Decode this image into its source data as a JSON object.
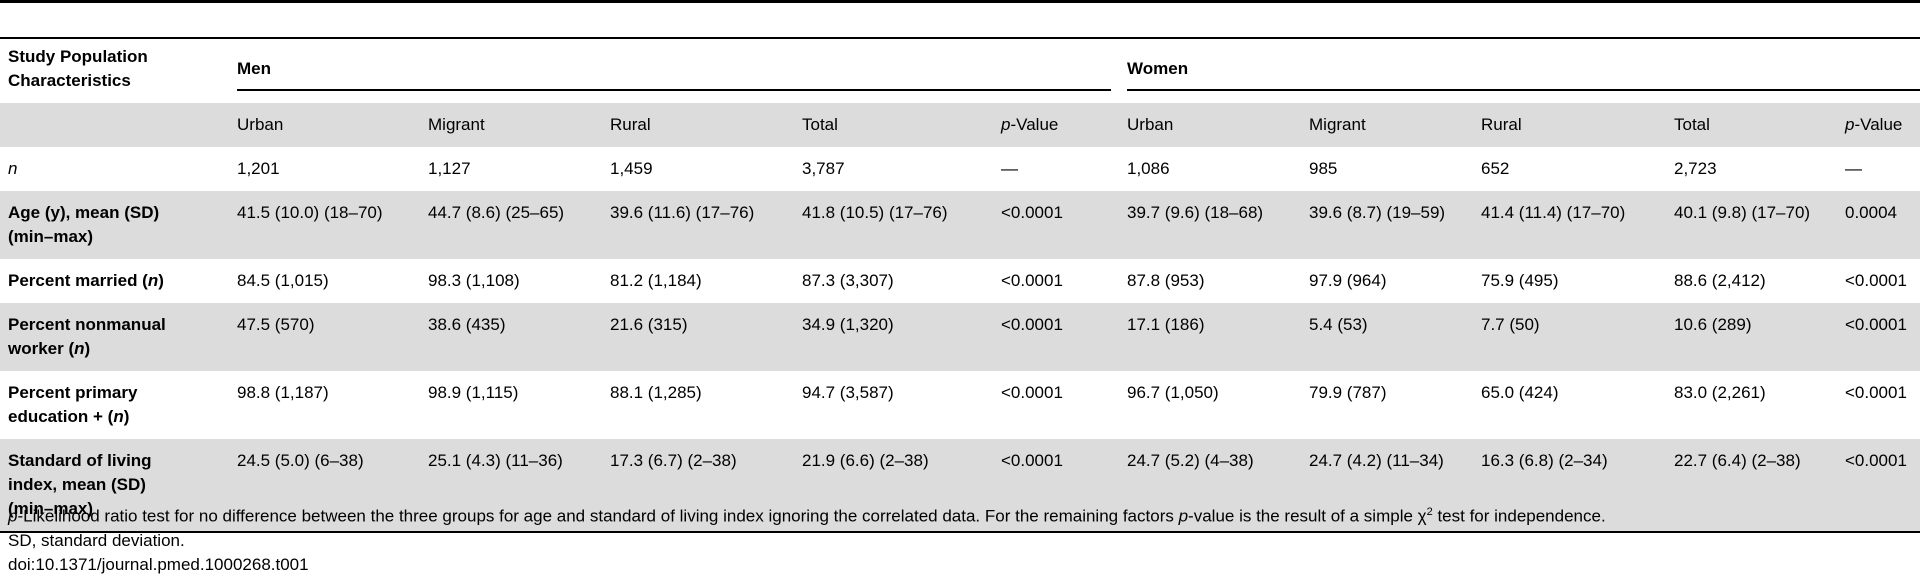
{
  "header": {
    "stub_title": [
      "Study Population",
      "Characteristics"
    ],
    "men_label": "Men",
    "women_label": "Women",
    "subcolumns": [
      "Urban",
      "Migrant",
      "Rural",
      "Total"
    ],
    "pvalue_prefix": "p",
    "pvalue_suffix": "-Value"
  },
  "rows": [
    {
      "label_parts": [
        {
          "t": "n",
          "italic": true,
          "bold": false
        }
      ],
      "men": [
        "1,201",
        "1,127",
        "1,459",
        "3,787",
        "—"
      ],
      "women": [
        "1,086",
        "985",
        "652",
        "2,723",
        "—"
      ]
    },
    {
      "label_parts": [
        {
          "t": "Age (y), mean (SD)",
          "br": true
        },
        {
          "t": "(min–max)"
        }
      ],
      "men": [
        "41.5 (10.0) (18–70)",
        "44.7 (8.6) (25–65)",
        "39.6 (11.6) (17–76)",
        "41.8 (10.5) (17–76)",
        "<0.0001"
      ],
      "women": [
        "39.7 (9.6) (18–68)",
        "39.6 (8.7) (19–59)",
        "41.4 (11.4) (17–70)",
        "40.1 (9.8) (17–70)",
        "0.0004"
      ]
    },
    {
      "label_parts": [
        {
          "t": "Percent married ("
        },
        {
          "t": "n",
          "italic": true
        },
        {
          "t": ")"
        }
      ],
      "men": [
        "84.5 (1,015)",
        "98.3 (1,108)",
        "81.2 (1,184)",
        "87.3 (3,307)",
        "<0.0001"
      ],
      "women": [
        "87.8 (953)",
        "97.9 (964)",
        "75.9 (495)",
        "88.6 (2,412)",
        "<0.0001"
      ]
    },
    {
      "label_parts": [
        {
          "t": "Percent nonmanual",
          "br": true
        },
        {
          "t": "worker ("
        },
        {
          "t": "n",
          "italic": true
        },
        {
          "t": ")"
        }
      ],
      "men": [
        "47.5 (570)",
        "38.6 (435)",
        "21.6 (315)",
        "34.9 (1,320)",
        "<0.0001"
      ],
      "women": [
        "17.1 (186)",
        "5.4 (53)",
        "7.7 (50)",
        "10.6 (289)",
        "<0.0001"
      ]
    },
    {
      "label_parts": [
        {
          "t": "Percent primary",
          "br": true
        },
        {
          "t": "education + ("
        },
        {
          "t": "n",
          "italic": true
        },
        {
          "t": ")"
        }
      ],
      "men": [
        "98.8 (1,187)",
        "98.9 (1,115)",
        "88.1 (1,285)",
        "94.7 (3,587)",
        "<0.0001"
      ],
      "women": [
        "96.7 (1,050)",
        "79.9 (787)",
        "65.0 (424)",
        "83.0 (2,261)",
        "<0.0001"
      ]
    },
    {
      "label_parts": [
        {
          "t": "Standard of living",
          "br": true
        },
        {
          "t": "index, mean (SD)",
          "br": true
        },
        {
          "t": "(min–max)"
        }
      ],
      "men": [
        "24.5 (5.0) (6–38)",
        "25.1 (4.3) (11–36)",
        "17.3 (6.7) (2–38)",
        "21.9 (6.6) (2–38)",
        "<0.0001"
      ],
      "women": [
        "24.7 (5.2) (4–38)",
        "24.7 (4.2) (11–34)",
        "16.3 (6.8) (2–34)",
        "22.7 (6.4) (2–38)",
        "<0.0001"
      ]
    }
  ],
  "footnote": {
    "p_letter": "p",
    "line1_a": "-Likelihood ratio test for no difference between the three groups for age and standard of living index ignoring the correlated data. For the remaining factors ",
    "line1_b": "-value is the result of a simple ",
    "chi": "χ",
    "sup": "2",
    "line1_c": " test for independence.",
    "line2": "SD, standard deviation.",
    "line3": "doi:10.1371/journal.pmed.1000268.t001"
  }
}
